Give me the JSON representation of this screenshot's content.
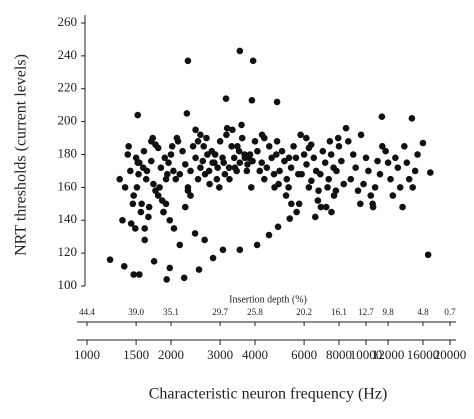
{
  "chart_data": {
    "type": "scatter",
    "y_label": "NRT thresholds (current levels)",
    "x_label": "Characteristic neuron frequency (Hz)",
    "x2_label": "Insertion depth (%)",
    "color": "#111111",
    "xscale": "log",
    "xlim": [
      1000,
      20000
    ],
    "xticks": [
      1000,
      1500,
      2000,
      3000,
      4000,
      6000,
      8000,
      10000,
      12000,
      16000,
      20000
    ],
    "x2ticks": [
      {
        "value": 1000,
        "label": "44.4"
      },
      {
        "value": 1500,
        "label": "39.0"
      },
      {
        "value": 2000,
        "label": "35.1"
      },
      {
        "value": 3000,
        "label": "29.7"
      },
      {
        "value": 4000,
        "label": "25.8"
      },
      {
        "value": 6000,
        "label": "20.2"
      },
      {
        "value": 8000,
        "label": "16.1"
      },
      {
        "value": 10000,
        "label": "12.7"
      },
      {
        "value": 12000,
        "label": "9.8"
      },
      {
        "value": 16000,
        "label": "4.8"
      },
      {
        "value": 20000,
        "label": "0.7"
      }
    ],
    "ylim": [
      100,
      260
    ],
    "yticks": [
      100,
      120,
      140,
      160,
      180,
      200,
      220,
      240,
      260
    ],
    "x": [
      1400,
      1430,
      1370,
      1460,
      1340,
      1490,
      1310,
      1520,
      1500,
      1530,
      1470,
      1560,
      1440,
      1590,
      1410,
      1600,
      1630,
      1570,
      1660,
      1540,
      1700,
      1510,
      1700,
      1730,
      1670,
      1760,
      1640,
      1800,
      1610,
      1800,
      1840,
      1760,
      1880,
      1720,
      1920,
      1900,
      1940,
      1860,
      1980,
      1820,
      2020,
      2000,
      2040,
      1960,
      2080,
      1920,
      2120,
      1880,
      2200,
      2250,
      2150,
      2300,
      2100,
      2350,
      2050,
      2400,
      2450,
      2350,
      2500,
      2300,
      2550,
      2250,
      2600,
      2650,
      2550,
      2700,
      2500,
      2750,
      2450,
      2800,
      2860,
      2740,
      2920,
      2680,
      2980,
      2620,
      3000,
      3060,
      2940,
      3120,
      2880,
      3180,
      2820,
      3240,
      3300,
      3370,
      3230,
      3440,
      3160,
      3510,
      3090,
      3580,
      3600,
      3670,
      3530,
      3740,
      3460,
      3810,
      3390,
      3880,
      3320,
      4000,
      4080,
      3920,
      4160,
      3840,
      4240,
      3760,
      4320,
      3680,
      4500,
      4590,
      4410,
      4680,
      4320,
      4770,
      4230,
      4860,
      5000,
      5100,
      4900,
      5200,
      4800,
      5300,
      4700,
      5400,
      5500,
      5610,
      5390,
      5720,
      5280,
      5830,
      5170,
      6000,
      6120,
      5880,
      6240,
      5760,
      6360,
      5640,
      6500,
      6630,
      6370,
      6760,
      6240,
      6890,
      6110,
      7000,
      7140,
      6860,
      7280,
      6720,
      7420,
      6580,
      7500,
      7650,
      7350,
      7800,
      7200,
      7950,
      8000,
      8160,
      7840,
      8320,
      7680,
      8480,
      7520,
      9000,
      9180,
      8820,
      9360,
      8640,
      9540,
      10000,
      10200,
      9800,
      10400,
      9600,
      10600,
      11000,
      11220,
      10780,
      11440,
      10560,
      12000,
      12240,
      11760,
      12480,
      13000,
      13260,
      12740,
      13520,
      14000,
      14280,
      13720,
      15000,
      15300,
      14700,
      2300,
      3530,
      3940,
      1520,
      2280,
      3150,
      3900,
      4800,
      11400,
      14600,
      16700,
      16000,
      17000,
      1210,
      1470,
      1540,
      1740,
      1930,
      1980,
      2230,
      2520,
      2830,
      3070,
      3530,
      4070,
      4490,
      4840,
      5330,
      1360,
      1610,
      2150,
      2440,
      2640
    ],
    "values": [
      180,
      170,
      160,
      150,
      140,
      135,
      165,
      175,
      178,
      168,
      155,
      145,
      138,
      172,
      185,
      182,
      165,
      150,
      142,
      175,
      188,
      160,
      176,
      162,
      148,
      186,
      170,
      155,
      135,
      184,
      172,
      158,
      145,
      190,
      165,
      178,
      168,
      152,
      140,
      160,
      185,
      180,
      170,
      175,
      165,
      150,
      188,
      145,
      182,
      174,
      168,
      160,
      190,
      155,
      135,
      185,
      178,
      170,
      165,
      158,
      192,
      148,
      176,
      168,
      172,
      180,
      188,
      162,
      195,
      182,
      175,
      170,
      165,
      190,
      160,
      185,
      188,
      178,
      172,
      168,
      180,
      196,
      175,
      165,
      185,
      178,
      172,
      170,
      192,
      182,
      175,
      198,
      190,
      180,
      175,
      170,
      185,
      178,
      172,
      160,
      195,
      188,
      182,
      176,
      170,
      180,
      192,
      174,
      165,
      178,
      185,
      178,
      172,
      168,
      190,
      180,
      175,
      162,
      182,
      176,
      170,
      165,
      188,
      178,
      160,
      150,
      185,
      178,
      172,
      168,
      160,
      192,
      155,
      180,
      174,
      168,
      160,
      150,
      186,
      145,
      178,
      170,
      164,
      158,
      184,
      148,
      190,
      182,
      175,
      168,
      160,
      152,
      188,
      142,
      180,
      172,
      165,
      158,
      148,
      190,
      185,
      176,
      170,
      162,
      155,
      196,
      145,
      180,
      172,
      165,
      158,
      188,
      150,
      178,
      170,
      162,
      155,
      192,
      148,
      176,
      168,
      160,
      185,
      150,
      175,
      165,
      182,
      155,
      172,
      160,
      178,
      148,
      175,
      165,
      185,
      170,
      180,
      160,
      237,
      243,
      237,
      204,
      205,
      214,
      213,
      212,
      203,
      202,
      119,
      187,
      169,
      116,
      107,
      107,
      115,
      104,
      111,
      105,
      110,
      117,
      122,
      122,
      125,
      131,
      136,
      141,
      112,
      128,
      125,
      132,
      128
    ]
  }
}
